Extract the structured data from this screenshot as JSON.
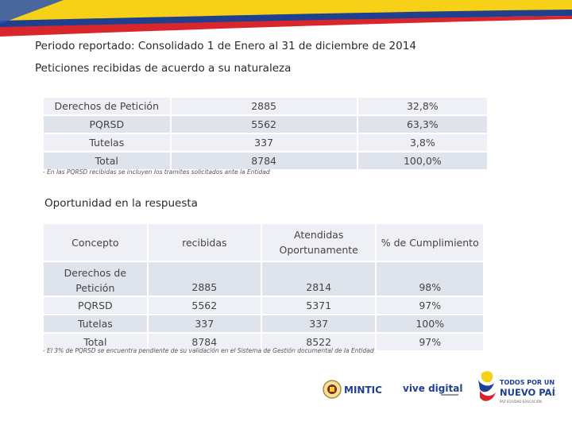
{
  "header": {
    "title": "Periodo reportado: Consolidado 1 de Enero al 31 de diciembre de 2014",
    "subtitle": "Peticiones recibidas de acuerdo a su naturaleza"
  },
  "table1": {
    "rows": [
      {
        "label": "Derechos de Petición",
        "count": "2885",
        "pct": "32,8%"
      },
      {
        "label": "PQRSD",
        "count": "5562",
        "pct": "63,3%"
      },
      {
        "label": "Tutelas",
        "count": "337",
        "pct": "3,8%"
      },
      {
        "label": "Total",
        "count": "8784",
        "pct": "100,0%"
      }
    ],
    "note": "- En las PQRSD recibidas se incluyen los tramites solicitados ante la Entidad"
  },
  "section2": {
    "title": "Oportunidad en la respuesta"
  },
  "table2": {
    "headers": [
      "Concepto",
      "recibidas",
      "Atendidas Oportunamente",
      "% de Cumplimiento"
    ],
    "rows": [
      {
        "label": "Derechos de Petición",
        "received": "2885",
        "attended": "2814",
        "pct": "98%"
      },
      {
        "label": "PQRSD",
        "received": "5562",
        "attended": "5371",
        "pct": "97%"
      },
      {
        "label": "Tutelas",
        "received": "337",
        "attended": "337",
        "pct": "100%"
      },
      {
        "label": "Total",
        "received": "8784",
        "attended": "8522",
        "pct": "97%"
      }
    ],
    "note": "- El 3% de PQRSD se encuentra pendiente de su validación en el Sistema de Gestión documental de la Entidad"
  },
  "logos": {
    "mintic": "MINTIC",
    "vive_digital": "vive digital",
    "todos_line1": "TODOS POR UN",
    "todos_line2": "NUEVO PAÍS",
    "todos_tagline": "PAZ  EQUIDAD  EDUCACIÓN"
  },
  "colors": {
    "yellow": "#f7d117",
    "blue": "#1f3f8f",
    "red": "#d8262c",
    "table_light": "#eef0f5",
    "table_dark": "#dfe3ec"
  }
}
